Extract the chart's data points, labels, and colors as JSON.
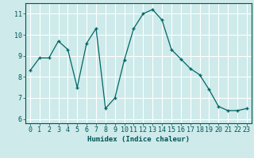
{
  "x": [
    0,
    1,
    2,
    3,
    4,
    5,
    6,
    7,
    8,
    9,
    10,
    11,
    12,
    13,
    14,
    15,
    16,
    17,
    18,
    19,
    20,
    21,
    22,
    23
  ],
  "y": [
    8.3,
    8.9,
    8.9,
    9.7,
    9.3,
    7.5,
    9.6,
    10.3,
    6.5,
    7.0,
    8.8,
    10.3,
    11.0,
    11.2,
    10.7,
    9.3,
    8.85,
    8.4,
    8.1,
    7.4,
    6.6,
    6.4,
    6.4,
    6.5
  ],
  "line_color": "#006666",
  "marker": "+",
  "marker_size": 3,
  "xlabel": "Humidex (Indice chaleur)",
  "xlim": [
    -0.5,
    23.5
  ],
  "ylim": [
    5.8,
    11.5
  ],
  "yticks": [
    6,
    7,
    8,
    9,
    10,
    11
  ],
  "xticks": [
    0,
    1,
    2,
    3,
    4,
    5,
    6,
    7,
    8,
    9,
    10,
    11,
    12,
    13,
    14,
    15,
    16,
    17,
    18,
    19,
    20,
    21,
    22,
    23
  ],
  "bg_color": "#ceeaea",
  "grid_color": "#ffffff",
  "tick_color": "#005555",
  "label_color": "#005555",
  "font_size_tick": 6,
  "font_size_label": 6.5
}
